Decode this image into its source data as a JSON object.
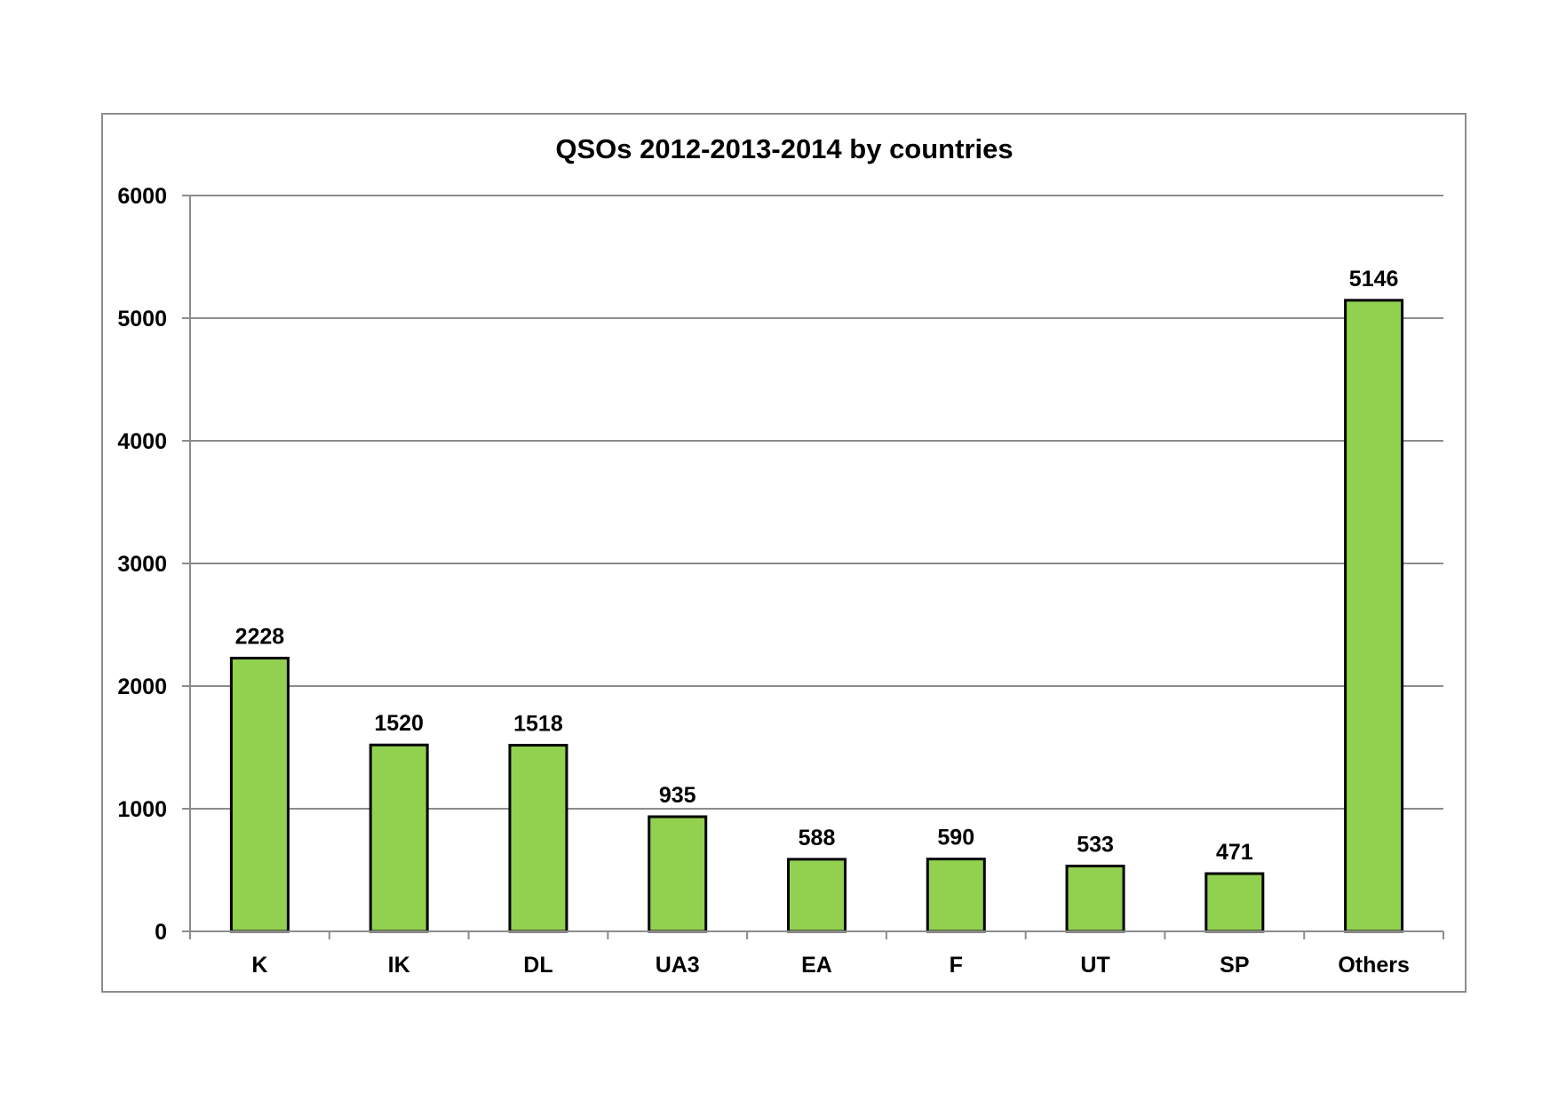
{
  "chart_data": {
    "type": "bar",
    "title": "QSOs 2012-2013-2014 by countries",
    "xlabel": "",
    "ylabel": "",
    "categories": [
      "K",
      "IK",
      "DL",
      "UA3",
      "EA",
      "F",
      "UT",
      "SP",
      "Others"
    ],
    "values": [
      2228,
      1520,
      1518,
      935,
      588,
      590,
      533,
      471,
      5146
    ],
    "data_labels": [
      "2228",
      "1520",
      "1518",
      "935",
      "588",
      "590",
      "533",
      "471",
      "5146"
    ],
    "ylim": [
      0,
      6000
    ],
    "yticks": [
      0,
      1000,
      2000,
      3000,
      4000,
      5000,
      6000
    ],
    "ytick_labels": [
      "0",
      "1000",
      "2000",
      "3000",
      "4000",
      "5000",
      "6000"
    ],
    "grid": true,
    "legend": "none",
    "colors": {
      "bar_fill": "#92d050",
      "bar_stroke": "#000000",
      "gridline": "#8c8c8c",
      "axis": "#8c8c8c",
      "frame": "#8c8c8c"
    }
  }
}
